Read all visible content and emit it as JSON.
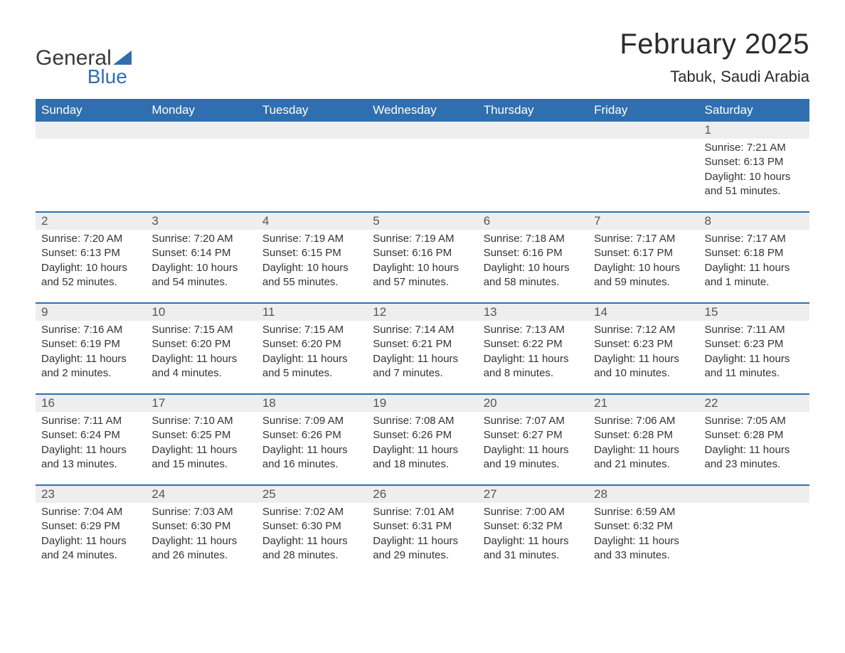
{
  "brand": {
    "part1": "General",
    "part2": "Blue"
  },
  "title": {
    "month": "February 2025",
    "location": "Tabuk, Saudi Arabia"
  },
  "style": {
    "header_bg": "#2f6fb0",
    "header_fg": "#ffffff",
    "daynum_bg": "#eeeeee",
    "row_border": "#2f6fb0",
    "text_color": "#333333",
    "body_bg": "#ffffff",
    "title_fontsize": 40,
    "location_fontsize": 22,
    "header_fontsize": 17,
    "cell_fontsize": 15
  },
  "weekdays": [
    "Sunday",
    "Monday",
    "Tuesday",
    "Wednesday",
    "Thursday",
    "Friday",
    "Saturday"
  ],
  "weeks": [
    [
      null,
      null,
      null,
      null,
      null,
      null,
      {
        "n": "1",
        "sr": "Sunrise: 7:21 AM",
        "ss": "Sunset: 6:13 PM",
        "d1": "Daylight: 10 hours",
        "d2": "and 51 minutes."
      }
    ],
    [
      {
        "n": "2",
        "sr": "Sunrise: 7:20 AM",
        "ss": "Sunset: 6:13 PM",
        "d1": "Daylight: 10 hours",
        "d2": "and 52 minutes."
      },
      {
        "n": "3",
        "sr": "Sunrise: 7:20 AM",
        "ss": "Sunset: 6:14 PM",
        "d1": "Daylight: 10 hours",
        "d2": "and 54 minutes."
      },
      {
        "n": "4",
        "sr": "Sunrise: 7:19 AM",
        "ss": "Sunset: 6:15 PM",
        "d1": "Daylight: 10 hours",
        "d2": "and 55 minutes."
      },
      {
        "n": "5",
        "sr": "Sunrise: 7:19 AM",
        "ss": "Sunset: 6:16 PM",
        "d1": "Daylight: 10 hours",
        "d2": "and 57 minutes."
      },
      {
        "n": "6",
        "sr": "Sunrise: 7:18 AM",
        "ss": "Sunset: 6:16 PM",
        "d1": "Daylight: 10 hours",
        "d2": "and 58 minutes."
      },
      {
        "n": "7",
        "sr": "Sunrise: 7:17 AM",
        "ss": "Sunset: 6:17 PM",
        "d1": "Daylight: 10 hours",
        "d2": "and 59 minutes."
      },
      {
        "n": "8",
        "sr": "Sunrise: 7:17 AM",
        "ss": "Sunset: 6:18 PM",
        "d1": "Daylight: 11 hours",
        "d2": "and 1 minute."
      }
    ],
    [
      {
        "n": "9",
        "sr": "Sunrise: 7:16 AM",
        "ss": "Sunset: 6:19 PM",
        "d1": "Daylight: 11 hours",
        "d2": "and 2 minutes."
      },
      {
        "n": "10",
        "sr": "Sunrise: 7:15 AM",
        "ss": "Sunset: 6:20 PM",
        "d1": "Daylight: 11 hours",
        "d2": "and 4 minutes."
      },
      {
        "n": "11",
        "sr": "Sunrise: 7:15 AM",
        "ss": "Sunset: 6:20 PM",
        "d1": "Daylight: 11 hours",
        "d2": "and 5 minutes."
      },
      {
        "n": "12",
        "sr": "Sunrise: 7:14 AM",
        "ss": "Sunset: 6:21 PM",
        "d1": "Daylight: 11 hours",
        "d2": "and 7 minutes."
      },
      {
        "n": "13",
        "sr": "Sunrise: 7:13 AM",
        "ss": "Sunset: 6:22 PM",
        "d1": "Daylight: 11 hours",
        "d2": "and 8 minutes."
      },
      {
        "n": "14",
        "sr": "Sunrise: 7:12 AM",
        "ss": "Sunset: 6:23 PM",
        "d1": "Daylight: 11 hours",
        "d2": "and 10 minutes."
      },
      {
        "n": "15",
        "sr": "Sunrise: 7:11 AM",
        "ss": "Sunset: 6:23 PM",
        "d1": "Daylight: 11 hours",
        "d2": "and 11 minutes."
      }
    ],
    [
      {
        "n": "16",
        "sr": "Sunrise: 7:11 AM",
        "ss": "Sunset: 6:24 PM",
        "d1": "Daylight: 11 hours",
        "d2": "and 13 minutes."
      },
      {
        "n": "17",
        "sr": "Sunrise: 7:10 AM",
        "ss": "Sunset: 6:25 PM",
        "d1": "Daylight: 11 hours",
        "d2": "and 15 minutes."
      },
      {
        "n": "18",
        "sr": "Sunrise: 7:09 AM",
        "ss": "Sunset: 6:26 PM",
        "d1": "Daylight: 11 hours",
        "d2": "and 16 minutes."
      },
      {
        "n": "19",
        "sr": "Sunrise: 7:08 AM",
        "ss": "Sunset: 6:26 PM",
        "d1": "Daylight: 11 hours",
        "d2": "and 18 minutes."
      },
      {
        "n": "20",
        "sr": "Sunrise: 7:07 AM",
        "ss": "Sunset: 6:27 PM",
        "d1": "Daylight: 11 hours",
        "d2": "and 19 minutes."
      },
      {
        "n": "21",
        "sr": "Sunrise: 7:06 AM",
        "ss": "Sunset: 6:28 PM",
        "d1": "Daylight: 11 hours",
        "d2": "and 21 minutes."
      },
      {
        "n": "22",
        "sr": "Sunrise: 7:05 AM",
        "ss": "Sunset: 6:28 PM",
        "d1": "Daylight: 11 hours",
        "d2": "and 23 minutes."
      }
    ],
    [
      {
        "n": "23",
        "sr": "Sunrise: 7:04 AM",
        "ss": "Sunset: 6:29 PM",
        "d1": "Daylight: 11 hours",
        "d2": "and 24 minutes."
      },
      {
        "n": "24",
        "sr": "Sunrise: 7:03 AM",
        "ss": "Sunset: 6:30 PM",
        "d1": "Daylight: 11 hours",
        "d2": "and 26 minutes."
      },
      {
        "n": "25",
        "sr": "Sunrise: 7:02 AM",
        "ss": "Sunset: 6:30 PM",
        "d1": "Daylight: 11 hours",
        "d2": "and 28 minutes."
      },
      {
        "n": "26",
        "sr": "Sunrise: 7:01 AM",
        "ss": "Sunset: 6:31 PM",
        "d1": "Daylight: 11 hours",
        "d2": "and 29 minutes."
      },
      {
        "n": "27",
        "sr": "Sunrise: 7:00 AM",
        "ss": "Sunset: 6:32 PM",
        "d1": "Daylight: 11 hours",
        "d2": "and 31 minutes."
      },
      {
        "n": "28",
        "sr": "Sunrise: 6:59 AM",
        "ss": "Sunset: 6:32 PM",
        "d1": "Daylight: 11 hours",
        "d2": "and 33 minutes."
      },
      null
    ]
  ]
}
